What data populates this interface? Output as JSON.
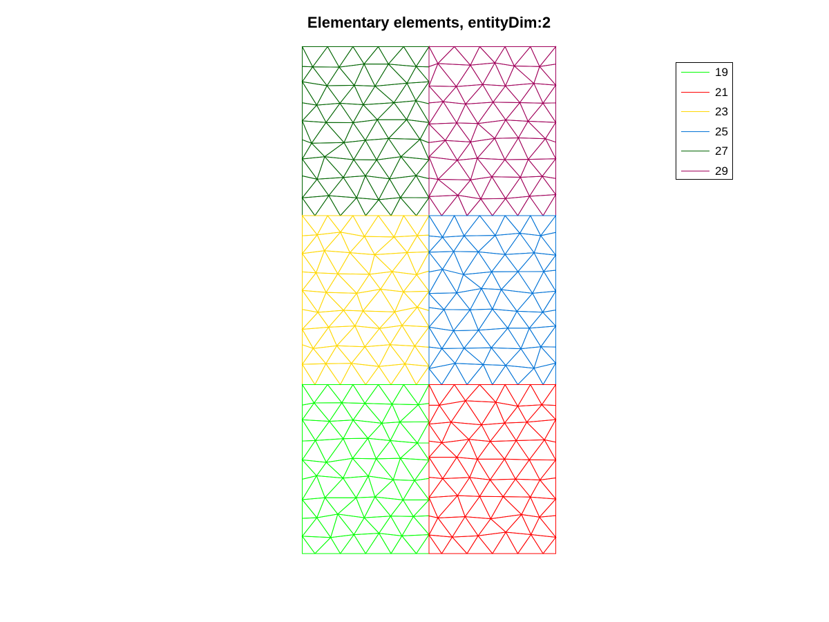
{
  "title": "Elementary elements, entityDim:2",
  "legend": {
    "items": [
      {
        "label": "19",
        "color": "#00ff00"
      },
      {
        "label": "21",
        "color": "#ff0000"
      },
      {
        "label": "23",
        "color": "#ffd700"
      },
      {
        "label": "25",
        "color": "#0072d6"
      },
      {
        "label": "27",
        "color": "#006400"
      },
      {
        "label": "29",
        "color": "#a0005a"
      }
    ]
  },
  "mesh": {
    "entity_dim": 2,
    "element_type": "triangle",
    "entities": [
      {
        "tag": "27",
        "color": "#006400",
        "region": "top-left"
      },
      {
        "tag": "29",
        "color": "#a0005a",
        "region": "top-right"
      },
      {
        "tag": "23",
        "color": "#ffd700",
        "region": "middle-left"
      },
      {
        "tag": "25",
        "color": "#0072d6",
        "region": "middle-right"
      },
      {
        "tag": "19",
        "color": "#00ff00",
        "region": "bottom-left"
      },
      {
        "tag": "21",
        "color": "#ff0000",
        "region": "bottom-right"
      }
    ]
  }
}
